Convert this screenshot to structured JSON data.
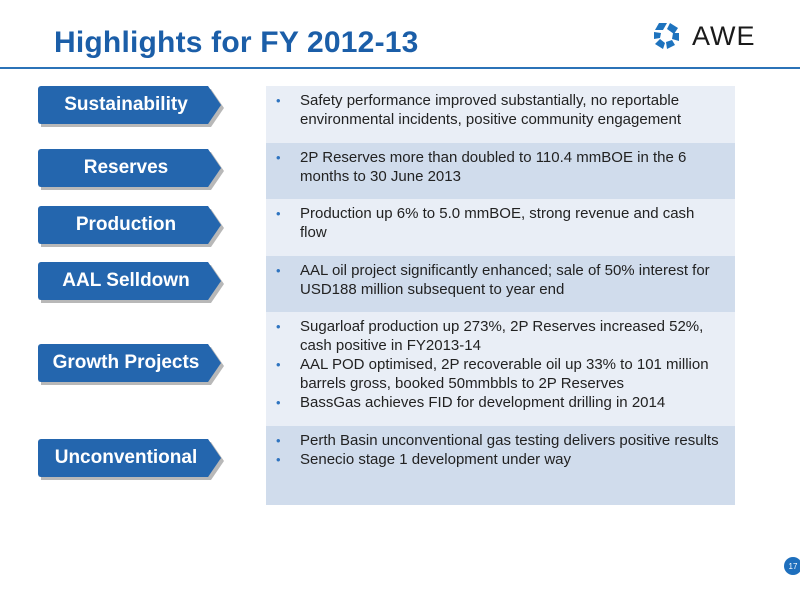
{
  "header": {
    "title": "Highlights for FY 2012-13",
    "logo_text": "AWE",
    "logo_icon": "awe-logo-icon"
  },
  "rows": [
    {
      "label": "Sustainability",
      "bullets": [
        "Safety performance improved substantially, no reportable environmental incidents, positive community engagement"
      ]
    },
    {
      "label": "Reserves",
      "bullets": [
        "2P Reserves more than doubled to 110.4 mmBOE in the 6 months to 30 June 2013"
      ]
    },
    {
      "label": "Production",
      "bullets": [
        "Production up 6% to 5.0 mmBOE, strong revenue and cash flow"
      ]
    },
    {
      "label": "AAL Selldown",
      "bullets": [
        "AAL oil project significantly enhanced; sale of 50% interest for USD188 million subsequent to year end"
      ]
    },
    {
      "label": "Growth Projects",
      "bullets": [
        "Sugarloaf production up 273%, 2P Reserves increased 52%, cash positive in FY2013-14",
        "AAL POD optimised, 2P recoverable oil up 33% to 101 million barrels gross, booked 50mmbbls to 2P Reserves",
        "BassGas achieves FID for development drilling in 2014"
      ]
    },
    {
      "label": "Unconventional",
      "bullets": [
        "Perth Basin unconventional gas testing delivers positive results",
        "Senecio stage 1 development under way"
      ]
    }
  ],
  "footer": {
    "page_number": "17"
  },
  "colors": {
    "title": "#1b5ea8",
    "label_fill": "#2466ae",
    "row_light": "#e9eef6",
    "row_dark": "#d0dcec"
  }
}
